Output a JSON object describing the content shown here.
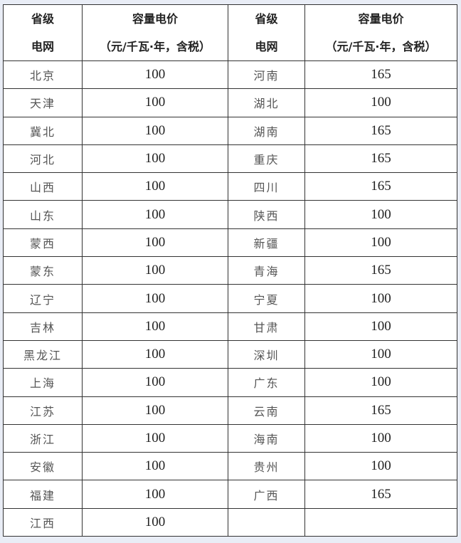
{
  "headers": {
    "grid_line1": "省级",
    "grid_line2": "电网",
    "price_line1": "容量电价",
    "price_line2": "（元/千瓦·年，含税）"
  },
  "left": [
    {
      "grid": "北京",
      "price": "100"
    },
    {
      "grid": "天津",
      "price": "100"
    },
    {
      "grid": "冀北",
      "price": "100"
    },
    {
      "grid": "河北",
      "price": "100"
    },
    {
      "grid": "山西",
      "price": "100"
    },
    {
      "grid": "山东",
      "price": "100"
    },
    {
      "grid": "蒙西",
      "price": "100"
    },
    {
      "grid": "蒙东",
      "price": "100"
    },
    {
      "grid": "辽宁",
      "price": "100"
    },
    {
      "grid": "吉林",
      "price": "100"
    },
    {
      "grid": "黑龙江",
      "price": "100"
    },
    {
      "grid": "上海",
      "price": "100"
    },
    {
      "grid": "江苏",
      "price": "100"
    },
    {
      "grid": "浙江",
      "price": "100"
    },
    {
      "grid": "安徽",
      "price": "100"
    },
    {
      "grid": "福建",
      "price": "100"
    },
    {
      "grid": "江西",
      "price": "100"
    }
  ],
  "right": [
    {
      "grid": "河南",
      "price": "165"
    },
    {
      "grid": "湖北",
      "price": "100"
    },
    {
      "grid": "湖南",
      "price": "165"
    },
    {
      "grid": "重庆",
      "price": "165"
    },
    {
      "grid": "四川",
      "price": "165"
    },
    {
      "grid": "陕西",
      "price": "100"
    },
    {
      "grid": "新疆",
      "price": "100"
    },
    {
      "grid": "青海",
      "price": "165"
    },
    {
      "grid": "宁夏",
      "price": "100"
    },
    {
      "grid": "甘肃",
      "price": "100"
    },
    {
      "grid": "深圳",
      "price": "100"
    },
    {
      "grid": "广东",
      "price": "100"
    },
    {
      "grid": "云南",
      "price": "165"
    },
    {
      "grid": "海南",
      "price": "100"
    },
    {
      "grid": "贵州",
      "price": "100"
    },
    {
      "grid": "广西",
      "price": "165"
    }
  ]
}
